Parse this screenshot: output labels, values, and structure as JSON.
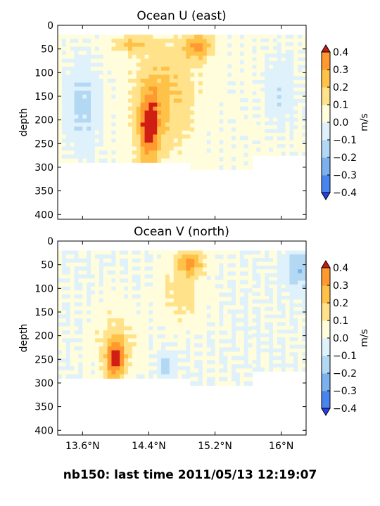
{
  "figure": {
    "suptitle": "nb150: last time 2011/05/13 12:19:07"
  },
  "colors": {
    "levels": [
      -0.4,
      -0.3,
      -0.2,
      -0.1,
      0.0,
      0.1,
      0.2,
      0.3,
      0.4
    ],
    "bands": [
      "#3a57f0",
      "#4a84ee",
      "#7ab1ee",
      "#b3d8f3",
      "#dff1fb",
      "#fffddb",
      "#ffe28a",
      "#ffc249",
      "#ff9930",
      "#f86520"
    ],
    "under": "#2a3cf0",
    "over": "#c81c10",
    "core": "#d01e14"
  },
  "chart_data": [
    {
      "type": "heatmap",
      "title": "Ocean U (east)",
      "xlabel": "",
      "ylabel": "depth",
      "xlim": [
        13.3,
        16.3
      ],
      "ylim": [
        410,
        0
      ],
      "x_ticks": [
        13.6,
        14.4,
        15.2,
        16.0
      ],
      "x_tick_labels": [],
      "y_ticks": [
        0,
        50,
        100,
        150,
        200,
        250,
        300,
        350,
        400
      ],
      "y_tick_labels": [
        "0",
        "50",
        "100",
        "150",
        "200",
        "250",
        "300",
        "350",
        "400"
      ],
      "colorbar": {
        "label": "m/s",
        "ticks": [
          "−0.4",
          "−0.3",
          "−0.2",
          "−0.1",
          "0.0",
          "0.1",
          "0.2",
          "0.3",
          "0.4"
        ],
        "extend": "both"
      },
      "data_extent": {
        "depth_top": 20,
        "depth_bottom_west": 290,
        "depth_bottom_mid": 305,
        "depth_bottom_east": 275
      },
      "features": [
        {
          "lon": 14.4,
          "depth": 220,
          "width_deg": 0.3,
          "height_m": 180,
          "value": 0.35
        },
        {
          "lon": 14.6,
          "depth": 150,
          "width_deg": 0.8,
          "height_m": 260,
          "value": 0.2
        },
        {
          "lon": 15.0,
          "depth": 45,
          "width_deg": 0.4,
          "height_m": 60,
          "value": 0.3
        },
        {
          "lon": 14.2,
          "depth": 40,
          "width_deg": 0.5,
          "height_m": 40,
          "value": 0.2
        },
        {
          "lon": 13.6,
          "depth": 170,
          "width_deg": 0.4,
          "height_m": 200,
          "value": -0.15
        },
        {
          "lon": 16.0,
          "depth": 140,
          "width_deg": 0.4,
          "height_m": 160,
          "value": -0.1
        }
      ]
    },
    {
      "type": "heatmap",
      "title": "Ocean V (north)",
      "xlabel": "",
      "ylabel": "depth",
      "xlim": [
        13.3,
        16.3
      ],
      "ylim": [
        410,
        0
      ],
      "x_ticks": [
        13.6,
        14.4,
        15.2,
        16.0
      ],
      "x_tick_labels": [
        "13.6°N",
        "14.4°N",
        "15.2°N",
        "16°N"
      ],
      "y_ticks": [
        0,
        50,
        100,
        150,
        200,
        250,
        300,
        350,
        400
      ],
      "y_tick_labels": [
        "0",
        "50",
        "100",
        "150",
        "200",
        "250",
        "300",
        "350",
        "400"
      ],
      "colorbar": {
        "label": "m/s",
        "ticks": [
          "−0.4",
          "−0.3",
          "−0.2",
          "−0.1",
          "0.0",
          "0.1",
          "0.2",
          "0.3",
          "0.4"
        ],
        "extend": "both"
      },
      "data_extent": {
        "depth_top": 20,
        "depth_bottom_west": 290,
        "depth_bottom_mid": 305,
        "depth_bottom_east": 275
      },
      "features": [
        {
          "lon": 14.0,
          "depth": 250,
          "width_deg": 0.25,
          "height_m": 90,
          "value": 0.35
        },
        {
          "lon": 14.0,
          "depth": 220,
          "width_deg": 0.55,
          "height_m": 180,
          "value": 0.15
        },
        {
          "lon": 14.9,
          "depth": 45,
          "width_deg": 0.35,
          "height_m": 60,
          "value": 0.3
        },
        {
          "lon": 14.8,
          "depth": 110,
          "width_deg": 0.6,
          "height_m": 140,
          "value": 0.15
        },
        {
          "lon": 16.2,
          "depth": 60,
          "width_deg": 0.3,
          "height_m": 90,
          "value": -0.2
        },
        {
          "lon": 14.6,
          "depth": 265,
          "width_deg": 0.2,
          "height_m": 60,
          "value": -0.15
        }
      ]
    }
  ]
}
